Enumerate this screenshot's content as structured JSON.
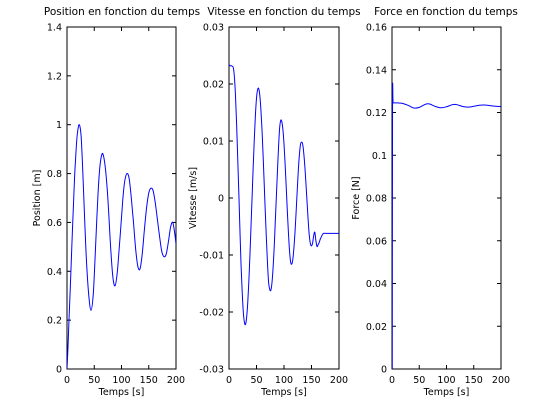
{
  "chart_data": [
    {
      "type": "line",
      "title": "Position en fonction du temps",
      "xlabel": "Temps [s]",
      "ylabel": "Position [m]",
      "xlim": [
        0,
        200
      ],
      "ylim": [
        0,
        1.4
      ],
      "xticks": [
        "0",
        "50",
        "100",
        "150",
        "200"
      ],
      "yticks": [
        "0",
        "0.2",
        "0.4",
        "0.6",
        "0.8",
        "1",
        "1.2",
        "1.4"
      ],
      "grid": false,
      "color": "#0000ff",
      "x": [
        0,
        2,
        4,
        6,
        8,
        10,
        12,
        14,
        16,
        18,
        20,
        22,
        24,
        26,
        28,
        30,
        33,
        36,
        40,
        44,
        48,
        51,
        54,
        57,
        60,
        63,
        66,
        70,
        74,
        77,
        80,
        84,
        88,
        92,
        96,
        100,
        103,
        106,
        110,
        114,
        118,
        122,
        126,
        130,
        134,
        138,
        142,
        146,
        150,
        154,
        158,
        162,
        166,
        170,
        174,
        178,
        182,
        186,
        190,
        194,
        198,
        200
      ],
      "y": [
        0.0,
        0.1,
        0.22,
        0.33,
        0.45,
        0.57,
        0.68,
        0.79,
        0.87,
        0.94,
        0.98,
        1.0,
        0.99,
        0.95,
        0.86,
        0.75,
        0.58,
        0.43,
        0.3,
        0.24,
        0.3,
        0.43,
        0.58,
        0.72,
        0.82,
        0.87,
        0.88,
        0.83,
        0.73,
        0.62,
        0.5,
        0.38,
        0.34,
        0.39,
        0.5,
        0.62,
        0.71,
        0.77,
        0.8,
        0.78,
        0.7,
        0.6,
        0.49,
        0.42,
        0.41,
        0.47,
        0.57,
        0.66,
        0.72,
        0.74,
        0.73,
        0.68,
        0.61,
        0.54,
        0.48,
        0.46,
        0.47,
        0.52,
        0.58,
        0.6,
        0.55,
        0.51
      ]
    },
    {
      "type": "line",
      "title": "Vitesse en fonction du temps",
      "xlabel": "Temps [s]",
      "ylabel": "Vitesse [m/s]",
      "xlim": [
        0,
        200
      ],
      "ylim": [
        -0.03,
        0.03
      ],
      "xticks": [
        "0",
        "50",
        "100",
        "150",
        "200"
      ],
      "yticks": [
        "-0.03",
        "-0.02",
        "-0.01",
        "0",
        "0.01",
        "0.02",
        "0.03"
      ],
      "grid": false,
      "color": "#0000ff",
      "x": [
        0,
        2,
        4,
        6,
        8,
        10,
        12,
        14,
        16,
        18,
        20,
        22,
        24,
        26,
        28,
        30,
        32,
        34,
        36,
        38,
        40,
        42,
        44,
        46,
        48,
        50,
        52,
        54,
        56,
        58,
        60,
        62,
        64,
        66,
        68,
        70,
        72,
        74,
        76,
        78,
        80,
        82,
        84,
        86,
        88,
        90,
        92,
        94,
        96,
        98,
        100,
        102,
        104,
        106,
        108,
        110,
        112,
        114,
        116,
        118,
        120,
        122,
        124,
        126,
        128,
        130,
        132,
        134,
        136,
        138,
        140,
        142,
        144,
        146,
        148,
        150,
        152,
        154,
        156,
        158,
        160,
        162,
        164,
        166,
        168,
        170,
        172,
        174,
        176,
        178,
        180,
        182,
        184,
        186,
        188,
        190,
        192,
        194,
        196,
        198,
        200
      ],
      "y": [
        0.0234,
        0.0232,
        0.0232,
        0.0231,
        0.0228,
        0.021,
        0.0175,
        0.0125,
        0.0065,
        0.0005,
        -0.006,
        -0.012,
        -0.0165,
        -0.02,
        -0.0218,
        -0.0222,
        -0.021,
        -0.0185,
        -0.0148,
        -0.0102,
        -0.005,
        0.0002,
        0.0055,
        0.0103,
        0.0145,
        0.0175,
        0.019,
        0.0192,
        0.018,
        0.0155,
        0.012,
        0.0075,
        0.0025,
        -0.0025,
        -0.0072,
        -0.0115,
        -0.0148,
        -0.016,
        -0.0162,
        -0.015,
        -0.0125,
        -0.009,
        -0.0045,
        0.0,
        0.0045,
        0.0088,
        0.0122,
        0.0136,
        0.0134,
        0.012,
        0.0095,
        0.006,
        0.002,
        -0.0022,
        -0.006,
        -0.0092,
        -0.0112,
        -0.0116,
        -0.0108,
        -0.0088,
        -0.006,
        -0.0025,
        0.0012,
        0.0048,
        0.0076,
        0.0094,
        0.0098,
        0.0094,
        0.0078,
        0.0054,
        0.0024,
        -0.0008,
        -0.004,
        -0.0066,
        -0.008,
        -0.0084,
        -0.0079,
        -0.0066,
        -0.006,
        -0.0075,
        -0.0085,
        -0.0082,
        -0.0078,
        -0.0072,
        -0.0068,
        -0.0064,
        -0.0062,
        -0.0062,
        -0.0062,
        -0.0062,
        -0.0062,
        -0.0062,
        -0.0062,
        -0.0062,
        -0.0062,
        -0.0062,
        -0.0062,
        -0.0062,
        -0.0062,
        -0.0062,
        -0.0062
      ]
    },
    {
      "type": "line",
      "title": "Force en fonction du temps",
      "xlabel": "Temps [s]",
      "ylabel": "Force [N]",
      "xlim": [
        0,
        200
      ],
      "ylim": [
        0,
        0.16
      ],
      "xticks": [
        "0",
        "50",
        "100",
        "150",
        "200"
      ],
      "yticks": [
        "0",
        "0.02",
        "0.04",
        "0.06",
        "0.08",
        "0.1",
        "0.12",
        "0.14",
        "0.16"
      ],
      "grid": false,
      "color": "#0000ff",
      "x": [
        0,
        0.5,
        1,
        2,
        5,
        10,
        15,
        20,
        30,
        40,
        50,
        60,
        65,
        70,
        80,
        90,
        100,
        110,
        115,
        120,
        130,
        140,
        150,
        160,
        170,
        180,
        190,
        200
      ],
      "y": [
        0,
        0,
        0.1245,
        0.1245,
        0.1245,
        0.1245,
        0.1244,
        0.1242,
        0.1233,
        0.1221,
        0.1224,
        0.1237,
        0.1241,
        0.1239,
        0.1228,
        0.1222,
        0.1227,
        0.1236,
        0.1238,
        0.1236,
        0.1228,
        0.1225,
        0.1229,
        0.1234,
        0.1235,
        0.1232,
        0.1229,
        0.1228
      ]
    }
  ]
}
